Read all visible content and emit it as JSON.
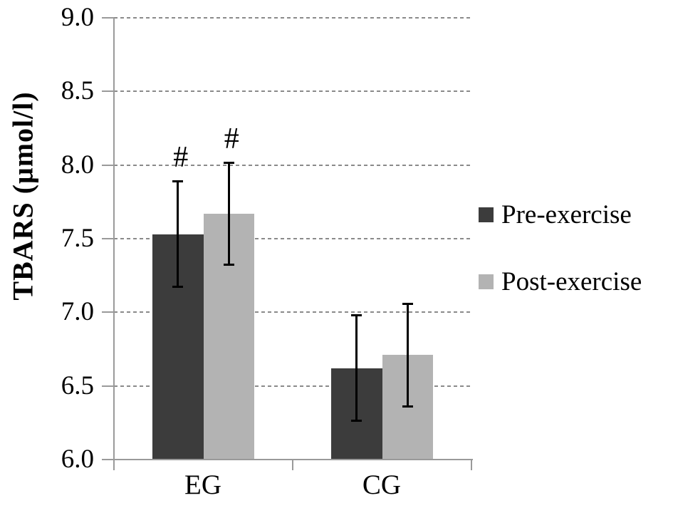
{
  "chart_data": {
    "type": "bar",
    "title": "",
    "ylabel": "TBARS (μmol/l)",
    "xlabel": "",
    "ylim": [
      6.0,
      9.0
    ],
    "ytick_step": 0.5,
    "yticks": [
      "9.0",
      "8.5",
      "8.0",
      "7.5",
      "7.0",
      "6.5",
      "6.0"
    ],
    "categories": [
      "EG",
      "CG"
    ],
    "series": [
      {
        "name": "Pre-exercise",
        "color": "#3c3c3c",
        "values": [
          7.53,
          6.62
        ],
        "errors": [
          0.36,
          0.36
        ]
      },
      {
        "name": "Post-exercise",
        "color": "#b3b3b3",
        "values": [
          7.67,
          6.71
        ],
        "errors": [
          0.35,
          0.35
        ]
      }
    ],
    "annotations": [
      {
        "text": "#",
        "category_index": 0,
        "series_index": 0
      },
      {
        "text": "#",
        "category_index": 0,
        "series_index": 1
      }
    ],
    "legend_position": "right",
    "grid": "horizontal-dashed",
    "error_bars": true
  }
}
